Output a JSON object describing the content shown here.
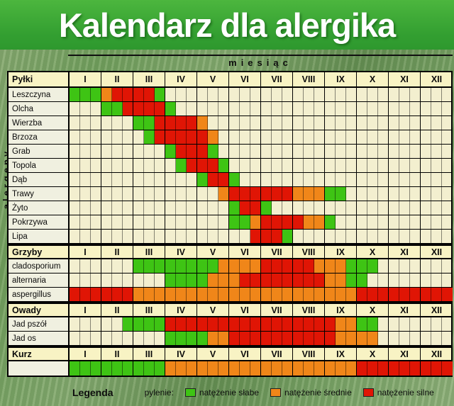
{
  "title": "Kalendarz dla alergika",
  "axis": {
    "top": "miesiąc",
    "left": "alergeny"
  },
  "legend": {
    "heading": "Legenda",
    "prefix": "pylenie:",
    "items": [
      {
        "label": "natężenie słabe",
        "code": "1"
      },
      {
        "label": "natężenie średnie",
        "code": "2"
      },
      {
        "label": "natężenie silne",
        "code": "3"
      }
    ]
  },
  "colors": {
    "0": "#f3efcf",
    "1": "#3ec414",
    "2": "#f08619",
    "3": "#e01505"
  },
  "chart_data": {
    "type": "heatmap",
    "months": [
      "I",
      "II",
      "III",
      "IV",
      "V",
      "VI",
      "VII",
      "VIII",
      "IX",
      "X",
      "XI",
      "XII"
    ],
    "subcolumns_per_month": 3,
    "cell_encoding": "one digit per 10-day period: 0=none, 1=natężenie słabe, 2=natężenie średnie, 3=natężenie silne",
    "intensity_legend": {
      "1": "natężenie słabe",
      "2": "natężenie średnie",
      "3": "natężenie silne"
    },
    "sections": [
      {
        "name": "Pyłki",
        "rows": [
          {
            "label": "Leszczyna",
            "cells": "111233331000000000000000000000000000"
          },
          {
            "label": "Olcha",
            "cells": "000113333100000000000000000000000000"
          },
          {
            "label": "Wierzba",
            "cells": "000000113333200000000000000000000000"
          },
          {
            "label": "Brzoza",
            "cells": "000000013333320000000000000000000000"
          },
          {
            "label": "Grab",
            "cells": "000000000133310000000000000000000000"
          },
          {
            "label": "Topola",
            "cells": "000000000013331000000000000000000000"
          },
          {
            "label": "Dąb",
            "cells": "000000000000133100000000000000000000"
          },
          {
            "label": "Trawy",
            "cells": "000000000000002333333222110000000000"
          },
          {
            "label": "Żyto",
            "cells": "000000000000000133100000000000000000"
          },
          {
            "label": "Pokrzywa",
            "cells": "000000000000000112333322100000000000"
          },
          {
            "label": "Lipa",
            "cells": "000000000000000003331000000000000000"
          }
        ]
      },
      {
        "name": "Grzyby",
        "rows": [
          {
            "label": "cladosporium",
            "cells": "000000111111112222333332221110000000"
          },
          {
            "label": "alternaria",
            "cells": "000000000111122233333333221100000000"
          },
          {
            "label": "aspergillus",
            "cells": "333333222222222222222222222333333333"
          }
        ]
      },
      {
        "name": "Owady",
        "rows": [
          {
            "label": "Jad pszół",
            "cells": "000001111333333333333333322110000000"
          },
          {
            "label": "Jad os",
            "cells": "000000000111122333333333322220000000"
          }
        ]
      },
      {
        "name": "Kurz",
        "rows": [
          {
            "label": "",
            "cells": "111111111222222222222222222333333333"
          }
        ]
      }
    ]
  }
}
